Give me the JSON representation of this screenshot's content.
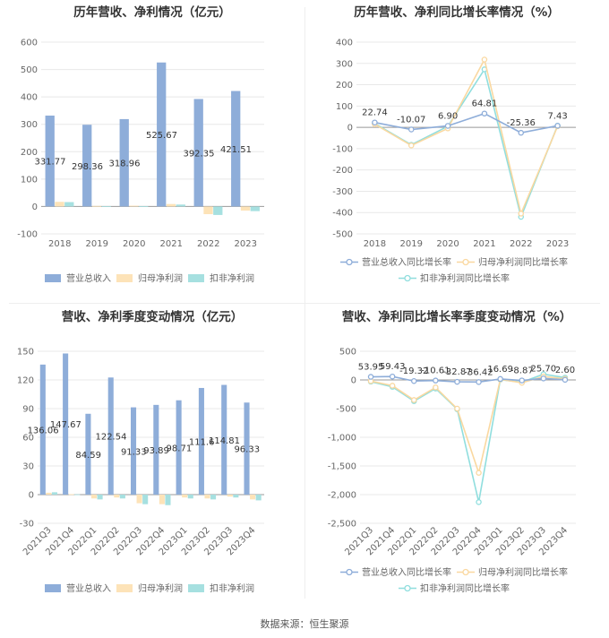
{
  "source": "数据来源：恒生聚源",
  "colors": {
    "revenue": "#8eadd9",
    "net": "#fde3b8",
    "deducted": "#a6e0e0",
    "revenue_line": "#8eadd9",
    "net_line": "#fad8a0",
    "deducted_line": "#90dede"
  },
  "chart_data": [
    {
      "type": "bar",
      "title": "历年营收、净利情况（亿元）",
      "categories": [
        "2018",
        "2019",
        "2020",
        "2021",
        "2022",
        "2023"
      ],
      "ylim": [
        -100,
        600
      ],
      "yticks": [
        -100,
        0,
        100,
        200,
        300,
        400,
        500,
        600
      ],
      "series": [
        {
          "name": "营业总收入",
          "values": [
            331.77,
            298.36,
            318.96,
            525.67,
            392.35,
            421.51
          ]
        },
        {
          "name": "归母净利润",
          "values": [
            17,
            2,
            3,
            9,
            -28,
            -15
          ]
        },
        {
          "name": "扣非净利润",
          "values": [
            16,
            1,
            1,
            7,
            -31,
            -17
          ]
        }
      ],
      "labels": [
        "331.77",
        "298.36",
        "318.96",
        "525.67",
        "392.35",
        "421.51"
      ],
      "legend": "bottom"
    },
    {
      "type": "line",
      "title": "历年营收、净利同比增长率情况（%）",
      "categories": [
        "2018",
        "2019",
        "2020",
        "2021",
        "2022",
        "2023"
      ],
      "ylim": [
        -500,
        400
      ],
      "yticks": [
        -500,
        -400,
        -300,
        -200,
        -100,
        0,
        100,
        200,
        300,
        400
      ],
      "series": [
        {
          "name": "营业总收入同比增长率",
          "values": [
            22.74,
            -10.07,
            6.9,
            64.81,
            -25.36,
            7.43
          ]
        },
        {
          "name": "归母净利润同比增长率",
          "values": [
            15,
            -85,
            -5,
            318,
            -405,
            5
          ]
        },
        {
          "name": "扣非净利润同比增长率",
          "values": [
            18,
            -82,
            5,
            272,
            -420,
            8
          ]
        }
      ],
      "labels": [
        "22.74",
        "-10.07",
        "6.90",
        "64.81",
        "-25.36",
        "7.43"
      ],
      "legend": "bottom"
    },
    {
      "type": "bar",
      "title": "营收、净利季度变动情况（亿元）",
      "categories": [
        "2021Q3",
        "2021Q4",
        "2022Q1",
        "2022Q2",
        "2022Q3",
        "2022Q4",
        "2023Q1",
        "2023Q2",
        "2023Q3",
        "2023Q4"
      ],
      "ylim": [
        -30,
        150
      ],
      "yticks": [
        -30,
        0,
        30,
        60,
        90,
        120,
        150
      ],
      "series": [
        {
          "name": "营业总收入",
          "values": [
            136.06,
            147.67,
            84.59,
            122.54,
            91.33,
            93.89,
            98.71,
            111.6,
            114.81,
            96.33
          ]
        },
        {
          "name": "归母净利润",
          "values": [
            2,
            0.5,
            -4,
            -3,
            -9,
            -10,
            -3,
            -4,
            -2,
            -5
          ]
        },
        {
          "name": "扣非净利润",
          "values": [
            2.5,
            0.3,
            -5,
            -4,
            -10,
            -11,
            -4,
            -5,
            -3,
            -6
          ]
        }
      ],
      "labels": [
        "136.06",
        "147.67",
        "84.59",
        "122.54",
        "91.33",
        "93.89",
        "98.71",
        "111.6",
        "114.81",
        "96.33"
      ],
      "legend": "bottom"
    },
    {
      "type": "line",
      "title": "营收、净利同比增长率季度变动情况（%）",
      "categories": [
        "2021Q3",
        "2021Q4",
        "2022Q1",
        "2022Q2",
        "2022Q3",
        "2022Q4",
        "2023Q1",
        "2023Q2",
        "2023Q3",
        "2023Q4"
      ],
      "ylim": [
        -2500,
        500
      ],
      "yticks": [
        -2500,
        -2000,
        -1500,
        -1000,
        -500,
        0,
        500
      ],
      "series": [
        {
          "name": "营业总收入同比增长率",
          "values": [
            53.95,
            59.43,
            -19.32,
            -10.61,
            -32.87,
            -36.42,
            16.69,
            -8.87,
            25.7,
            2.6
          ]
        },
        {
          "name": "归母净利润同比增长率",
          "values": [
            -20,
            -100,
            -350,
            -130,
            -500,
            -1620,
            10,
            -50,
            60,
            20
          ]
        },
        {
          "name": "扣非净利润同比增长率",
          "values": [
            -30,
            -120,
            -370,
            -150,
            -510,
            -2130,
            5,
            -40,
            100,
            40
          ]
        }
      ],
      "labels": [
        "53.95",
        "59.43",
        "-19.32",
        "-10.61",
        "-32.87",
        "-36.42",
        "16.69",
        "-8.87",
        "25.70",
        "2.60"
      ],
      "legend": "bottom"
    }
  ]
}
